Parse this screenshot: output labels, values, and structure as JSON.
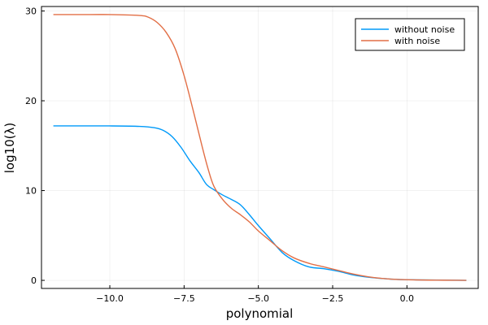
{
  "chart_data": {
    "type": "line",
    "xlabel": "polynomial",
    "ylabel": "log10(λ)",
    "xlim": [
      -12.3,
      2.4
    ],
    "ylim": [
      -0.9,
      30.5
    ],
    "xticks": [
      -10.0,
      -7.5,
      -5.0,
      -2.5,
      0.0
    ],
    "xtick_labels": [
      "−10.0",
      "−7.5",
      "−5.0",
      "−2.5",
      "0.0"
    ],
    "yticks": [
      0,
      10,
      20,
      30
    ],
    "ytick_labels": [
      "0",
      "10",
      "20",
      "30"
    ],
    "grid": true,
    "legend_position": "top-right",
    "series": [
      {
        "name": "without noise",
        "color": "#009af9",
        "x": [
          -11.9,
          -11.0,
          -10.0,
          -9.0,
          -8.5,
          -8.2,
          -7.9,
          -7.6,
          -7.3,
          -7.0,
          -6.75,
          -6.5,
          -6.2,
          -5.9,
          -5.6,
          -5.3,
          -5.0,
          -4.6,
          -4.2,
          -3.8,
          -3.3,
          -2.8,
          -2.3,
          -1.8,
          -1.3,
          -0.8,
          -0.3,
          0.3,
          1.0,
          1.7,
          2.0
        ],
        "y": [
          17.2,
          17.2,
          17.2,
          17.15,
          17.0,
          16.7,
          16.0,
          14.8,
          13.3,
          12.0,
          10.7,
          10.1,
          9.5,
          9.0,
          8.4,
          7.3,
          6.1,
          4.6,
          3.1,
          2.2,
          1.5,
          1.3,
          1.0,
          0.6,
          0.35,
          0.2,
          0.1,
          0.06,
          0.03,
          0.01,
          0.0
        ]
      },
      {
        "name": "with noise",
        "color": "#e26f46",
        "x": [
          -11.9,
          -11.0,
          -10.0,
          -9.0,
          -8.7,
          -8.4,
          -8.1,
          -7.8,
          -7.5,
          -7.2,
          -6.9,
          -6.7,
          -6.5,
          -6.2,
          -5.9,
          -5.6,
          -5.3,
          -5.0,
          -4.6,
          -4.2,
          -3.8,
          -3.3,
          -2.8,
          -2.3,
          -1.8,
          -1.3,
          -0.8,
          -0.3,
          0.3,
          1.0,
          1.7,
          2.0
        ],
        "y": [
          29.6,
          29.6,
          29.6,
          29.5,
          29.3,
          28.7,
          27.6,
          25.8,
          22.8,
          19.0,
          15.0,
          12.5,
          10.5,
          9.0,
          8.0,
          7.3,
          6.5,
          5.5,
          4.4,
          3.3,
          2.5,
          1.9,
          1.5,
          1.1,
          0.7,
          0.4,
          0.2,
          0.1,
          0.05,
          0.02,
          0.01,
          0.0
        ]
      }
    ]
  }
}
